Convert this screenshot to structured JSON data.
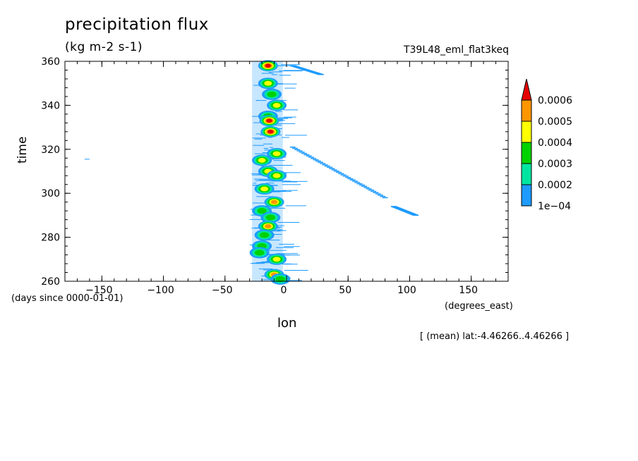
{
  "chart_data": {
    "type": "heatmap",
    "title": "precipitation flux",
    "units": "(kg m-2 s-1)",
    "run_id": "T39L48_eml_flat3keq",
    "xlabel": "lon",
    "ylabel": "time",
    "x_units": "(degrees_east)",
    "y_units": "(days since 0000-01-01)",
    "region_note": "[ (mean) lat:-4.46266..4.46266 ]",
    "xlim": [
      -180,
      180
    ],
    "ylim": [
      260,
      360
    ],
    "x_ticks": [
      -150,
      -100,
      -50,
      0,
      50,
      100,
      150
    ],
    "y_ticks": [
      260,
      280,
      300,
      320,
      340,
      360
    ],
    "colorbar": {
      "levels": [
        0.0001,
        0.0002,
        0.0003,
        0.0004,
        0.0005,
        0.0006
      ],
      "labels": [
        "1e-04",
        "0.0002",
        "0.0003",
        "0.0004",
        "0.0005",
        "0.0006"
      ],
      "colors": [
        "#1e9bff",
        "#00e6a0",
        "#00d200",
        "#ffff00",
        "#ff9600",
        "#e60000"
      ]
    },
    "features": [
      {
        "lon": -15,
        "time": 358,
        "level": 5
      },
      {
        "lon": -15,
        "time": 350,
        "level": 3
      },
      {
        "lon": -12,
        "time": 345,
        "level": 2
      },
      {
        "lon": -8,
        "time": 340,
        "level": 3
      },
      {
        "lon": -15,
        "time": 335,
        "level": 2
      },
      {
        "lon": -14,
        "time": 333,
        "level": 5
      },
      {
        "lon": -13,
        "time": 328,
        "level": 5
      },
      {
        "lon": -8,
        "time": 318,
        "level": 3
      },
      {
        "lon": -20,
        "time": 315,
        "level": 3
      },
      {
        "lon": -15,
        "time": 310,
        "level": 3
      },
      {
        "lon": -8,
        "time": 308,
        "level": 3
      },
      {
        "lon": -18,
        "time": 302,
        "level": 3
      },
      {
        "lon": -10,
        "time": 296,
        "level": 4
      },
      {
        "lon": -20,
        "time": 292,
        "level": 2
      },
      {
        "lon": -13,
        "time": 289,
        "level": 2
      },
      {
        "lon": -15,
        "time": 285,
        "level": 4
      },
      {
        "lon": -18,
        "time": 281,
        "level": 2
      },
      {
        "lon": -20,
        "time": 276,
        "level": 2
      },
      {
        "lon": -22,
        "time": 273,
        "level": 2
      },
      {
        "lon": -8,
        "time": 270,
        "level": 3
      },
      {
        "lon": -10,
        "time": 263,
        "level": 4
      },
      {
        "lon": -5,
        "time": 261,
        "level": 2
      }
    ],
    "streaks": [
      {
        "lon": [
          5,
          80
        ],
        "time": [
          321,
          298
        ]
      },
      {
        "lon": [
          87,
          105
        ],
        "time": [
          294,
          290
        ]
      },
      {
        "lon": [
          5,
          28
        ],
        "time": [
          358,
          354
        ]
      }
    ]
  }
}
